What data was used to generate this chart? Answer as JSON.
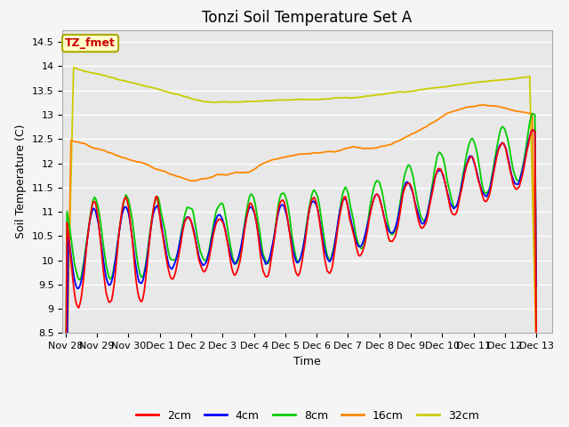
{
  "title": "Tonzi Soil Temperature Set A",
  "xlabel": "Time",
  "ylabel": "Soil Temperature (C)",
  "ylim": [
    8.5,
    14.75
  ],
  "xlim": [
    -0.1,
    15.5
  ],
  "legend_labels": [
    "2cm",
    "4cm",
    "8cm",
    "16cm",
    "32cm"
  ],
  "legend_colors": [
    "#ff0000",
    "#0000ff",
    "#00cc00",
    "#ff8800",
    "#cccc00"
  ],
  "line_colors": [
    "#ff0000",
    "#0000ff",
    "#00cc00",
    "#ff8800",
    "#cccc00"
  ],
  "annotation_text": "TZ_fmet",
  "annotation_color": "#cc0000",
  "annotation_bg": "#ffffcc",
  "annotation_border": "#aaaa00",
  "background_color": "#e8e8e8",
  "grid_color": "#ffffff",
  "title_fontsize": 12,
  "label_fontsize": 9,
  "tick_fontsize": 8,
  "xtick_labels": [
    "Nov 28",
    "Nov 29",
    "Nov 30",
    "Dec 1",
    "Dec 2",
    "Dec 3",
    "Dec 4",
    "Dec 5",
    "Dec 6",
    "Dec 7",
    "Dec 8",
    "Dec 9",
    "Dec 10",
    "Dec 11",
    "Dec 12",
    "Dec 13"
  ],
  "ytick_values": [
    8.5,
    9.0,
    9.5,
    10.0,
    10.5,
    11.0,
    11.5,
    12.0,
    12.5,
    13.0,
    13.5,
    14.0,
    14.5
  ]
}
